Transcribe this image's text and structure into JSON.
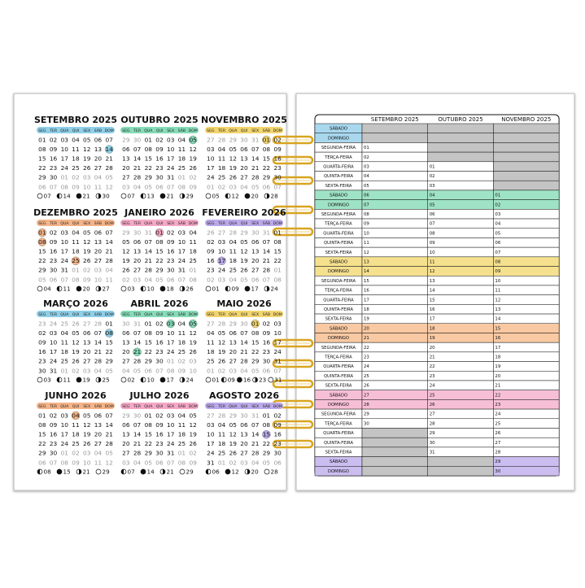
{
  "weekdays": [
    "SEG",
    "TER",
    "QUA",
    "QUI",
    "SEX",
    "SÁB",
    "DOM"
  ],
  "months": [
    {
      "title": "SETEMBRO 2025",
      "color": "#8fcfe8",
      "marked": [
        "14"
      ],
      "weeks": [
        [
          "01",
          "02",
          "03",
          "04",
          "05",
          "06",
          "07"
        ],
        [
          "08",
          "09",
          "10",
          "11",
          "12",
          "13",
          "14"
        ],
        [
          "15",
          "16",
          "17",
          "18",
          "19",
          "20",
          "21"
        ],
        [
          "22",
          "23",
          "24",
          "25",
          "26",
          "27",
          "28"
        ],
        [
          "29",
          "30",
          "01",
          "02",
          "03",
          "04",
          "05"
        ],
        [
          "06",
          "07",
          "08",
          "09",
          "10",
          "11",
          "12"
        ]
      ],
      "moons": [
        {
          "phase": "full",
          "day": "07"
        },
        {
          "phase": "last",
          "day": "14"
        },
        {
          "phase": "new",
          "day": "21"
        },
        {
          "phase": "first",
          "day": "30"
        }
      ]
    },
    {
      "title": "OUTUBRO 2025",
      "color": "#86dcb8",
      "marked": [
        "05"
      ],
      "weeks": [
        [
          "29",
          "30",
          "01",
          "02",
          "03",
          "04",
          "05"
        ],
        [
          "06",
          "07",
          "08",
          "09",
          "10",
          "11",
          "12"
        ],
        [
          "13",
          "14",
          "15",
          "16",
          "17",
          "18",
          "19"
        ],
        [
          "20",
          "21",
          "22",
          "23",
          "24",
          "25",
          "26"
        ],
        [
          "27",
          "28",
          "29",
          "30",
          "31",
          "01",
          "02"
        ],
        [
          "03",
          "04",
          "05",
          "06",
          "07",
          "08",
          "09"
        ]
      ],
      "moons": [
        {
          "phase": "full",
          "day": "07"
        },
        {
          "phase": "last",
          "day": "13"
        },
        {
          "phase": "new",
          "day": "21"
        },
        {
          "phase": "first",
          "day": "29"
        }
      ]
    },
    {
      "title": "NOVEMBRO 2025",
      "color": "#f3d56e",
      "marked": [
        "01"
      ],
      "weeks": [
        [
          "27",
          "28",
          "29",
          "30",
          "31",
          "01",
          "02"
        ],
        [
          "03",
          "04",
          "05",
          "06",
          "07",
          "08",
          "09"
        ],
        [
          "10",
          "11",
          "12",
          "13",
          "14",
          "15",
          "16"
        ],
        [
          "17",
          "18",
          "19",
          "20",
          "21",
          "22",
          "23"
        ],
        [
          "24",
          "25",
          "26",
          "27",
          "28",
          "29",
          "30"
        ],
        [
          "01",
          "02",
          "03",
          "04",
          "05",
          "06",
          "07"
        ]
      ],
      "moons": [
        {
          "phase": "full",
          "day": "05"
        },
        {
          "phase": "last",
          "day": "12"
        },
        {
          "phase": "new",
          "day": "20"
        },
        {
          "phase": "first",
          "day": "28"
        }
      ]
    },
    {
      "title": "DEZEMBRO 2025",
      "color": "#f5b488",
      "marked": [
        "01",
        "08",
        "25"
      ],
      "weeks": [
        [
          "01",
          "02",
          "03",
          "04",
          "05",
          "06",
          "07"
        ],
        [
          "08",
          "09",
          "10",
          "11",
          "12",
          "13",
          "14"
        ],
        [
          "15",
          "16",
          "17",
          "18",
          "19",
          "20",
          "21"
        ],
        [
          "22",
          "23",
          "24",
          "25",
          "26",
          "27",
          "28"
        ],
        [
          "29",
          "30",
          "31",
          "01",
          "02",
          "03",
          "04"
        ],
        [
          "05",
          "06",
          "07",
          "08",
          "09",
          "10",
          "11"
        ]
      ],
      "moons": [
        {
          "phase": "full",
          "day": "04"
        },
        {
          "phase": "last",
          "day": "11"
        },
        {
          "phase": "new",
          "day": "20"
        },
        {
          "phase": "first",
          "day": "27"
        }
      ]
    },
    {
      "title": "JANEIRO 2026",
      "color": "#f5a8c6",
      "marked": [
        "01"
      ],
      "weeks": [
        [
          "29",
          "30",
          "31",
          "01",
          "02",
          "03",
          "04"
        ],
        [
          "05",
          "06",
          "07",
          "08",
          "09",
          "10",
          "11"
        ],
        [
          "12",
          "13",
          "14",
          "15",
          "16",
          "17",
          "18"
        ],
        [
          "19",
          "20",
          "21",
          "22",
          "23",
          "24",
          "25"
        ],
        [
          "26",
          "27",
          "28",
          "29",
          "30",
          "31",
          "01"
        ],
        [
          "02",
          "03",
          "04",
          "05",
          "06",
          "07",
          "08"
        ]
      ],
      "moons": [
        {
          "phase": "full",
          "day": "03"
        },
        {
          "phase": "last",
          "day": "10"
        },
        {
          "phase": "new",
          "day": "18"
        },
        {
          "phase": "first",
          "day": "26"
        }
      ]
    },
    {
      "title": "FEVEREIRO 2026",
      "color": "#bba9ea",
      "marked": [
        "17"
      ],
      "weeks": [
        [
          "26",
          "27",
          "28",
          "29",
          "30",
          "31",
          "01"
        ],
        [
          "02",
          "03",
          "04",
          "05",
          "06",
          "07",
          "08"
        ],
        [
          "09",
          "10",
          "11",
          "12",
          "13",
          "14",
          "15"
        ],
        [
          "16",
          "17",
          "18",
          "19",
          "20",
          "21",
          "22"
        ],
        [
          "23",
          "24",
          "25",
          "26",
          "27",
          "28",
          "01"
        ],
        [
          "02",
          "03",
          "04",
          "05",
          "06",
          "07",
          "08"
        ]
      ],
      "moons": [
        {
          "phase": "full",
          "day": "01"
        },
        {
          "phase": "last",
          "day": "09"
        },
        {
          "phase": "new",
          "day": "17"
        },
        {
          "phase": "first",
          "day": "24"
        }
      ]
    },
    {
      "title": "MARÇO 2026",
      "color": "#8fcfe8",
      "marked": [
        "08"
      ],
      "weeks": [
        [
          "23",
          "24",
          "25",
          "26",
          "27",
          "28",
          "01"
        ],
        [
          "02",
          "03",
          "04",
          "05",
          "06",
          "07",
          "08"
        ],
        [
          "09",
          "10",
          "11",
          "12",
          "13",
          "14",
          "15"
        ],
        [
          "16",
          "17",
          "18",
          "19",
          "20",
          "21",
          "22"
        ],
        [
          "23",
          "24",
          "25",
          "26",
          "27",
          "28",
          "29"
        ],
        [
          "30",
          "31",
          "01",
          "02",
          "03",
          "04",
          "05"
        ]
      ],
      "moons": [
        {
          "phase": "full",
          "day": "03"
        },
        {
          "phase": "last",
          "day": "11"
        },
        {
          "phase": "new",
          "day": "19"
        },
        {
          "phase": "first",
          "day": "25"
        }
      ]
    },
    {
      "title": "ABRIL 2026",
      "color": "#86dcb8",
      "marked": [
        "03",
        "05",
        "21"
      ],
      "weeks": [
        [
          "30",
          "31",
          "01",
          "02",
          "03",
          "04",
          "05"
        ],
        [
          "06",
          "07",
          "08",
          "09",
          "10",
          "11",
          "12"
        ],
        [
          "13",
          "14",
          "15",
          "16",
          "17",
          "18",
          "19"
        ],
        [
          "20",
          "21",
          "22",
          "23",
          "24",
          "25",
          "26"
        ],
        [
          "27",
          "28",
          "29",
          "30",
          "01",
          "02",
          "03"
        ],
        [
          "04",
          "05",
          "06",
          "07",
          "08",
          "09",
          "10"
        ]
      ],
      "moons": [
        {
          "phase": "full",
          "day": "02"
        },
        {
          "phase": "last",
          "day": "10"
        },
        {
          "phase": "new",
          "day": "17"
        },
        {
          "phase": "first",
          "day": "24"
        }
      ]
    },
    {
      "title": "MAIO 2026",
      "color": "#f3d56e",
      "marked": [
        "01"
      ],
      "weeks": [
        [
          "27",
          "28",
          "29",
          "30",
          "01",
          "02",
          "03"
        ],
        [
          "04",
          "05",
          "06",
          "07",
          "08",
          "09",
          "10"
        ],
        [
          "11",
          "12",
          "13",
          "14",
          "15",
          "16",
          "17"
        ],
        [
          "18",
          "19",
          "20",
          "21",
          "22",
          "23",
          "24"
        ],
        [
          "25",
          "26",
          "27",
          "28",
          "29",
          "30",
          "31"
        ],
        [
          "01",
          "02",
          "03",
          "04",
          "05",
          "06",
          "07"
        ]
      ],
      "moons": [
        {
          "phase": "full",
          "day": "01"
        },
        {
          "phase": "last",
          "day": "09"
        },
        {
          "phase": "new",
          "day": "16"
        },
        {
          "phase": "first",
          "day": "23"
        },
        {
          "phase": "full",
          "day": "31"
        }
      ]
    },
    {
      "title": "JUNHO 2026",
      "color": "#f5b488",
      "marked": [
        "04"
      ],
      "weeks": [
        [
          "01",
          "02",
          "03",
          "04",
          "05",
          "06",
          "07"
        ],
        [
          "08",
          "09",
          "10",
          "11",
          "12",
          "13",
          "14"
        ],
        [
          "15",
          "16",
          "17",
          "18",
          "19",
          "20",
          "21"
        ],
        [
          "22",
          "23",
          "24",
          "25",
          "26",
          "27",
          "28"
        ],
        [
          "29",
          "30",
          "01",
          "02",
          "03",
          "04",
          "05"
        ],
        [
          "06",
          "07",
          "08",
          "09",
          "10",
          "11",
          "12"
        ]
      ],
      "moons": [
        {
          "phase": "last",
          "day": "08"
        },
        {
          "phase": "new",
          "day": "15"
        },
        {
          "phase": "first",
          "day": "21"
        },
        {
          "phase": "full",
          "day": "29"
        }
      ]
    },
    {
      "title": "JULHO 2026",
      "color": "#f5a8c6",
      "marked": [],
      "weeks": [
        [
          "29",
          "30",
          "01",
          "02",
          "03",
          "04",
          "05"
        ],
        [
          "06",
          "07",
          "08",
          "09",
          "10",
          "11",
          "12"
        ],
        [
          "13",
          "14",
          "15",
          "16",
          "17",
          "18",
          "19"
        ],
        [
          "20",
          "21",
          "22",
          "23",
          "24",
          "25",
          "26"
        ],
        [
          "27",
          "28",
          "29",
          "30",
          "31",
          "01",
          "02"
        ],
        [
          "03",
          "04",
          "05",
          "06",
          "07",
          "08",
          "09"
        ]
      ],
      "moons": [
        {
          "phase": "last",
          "day": "07"
        },
        {
          "phase": "new",
          "day": "14"
        },
        {
          "phase": "first",
          "day": "21"
        },
        {
          "phase": "full",
          "day": "29"
        }
      ]
    },
    {
      "title": "AGOSTO 2026",
      "color": "#bba9ea",
      "marked": [
        "15"
      ],
      "weeks": [
        [
          "27",
          "28",
          "29",
          "30",
          "31",
          "01",
          "02"
        ],
        [
          "03",
          "04",
          "05",
          "06",
          "07",
          "08",
          "09"
        ],
        [
          "10",
          "11",
          "12",
          "13",
          "14",
          "15",
          "16"
        ],
        [
          "17",
          "18",
          "19",
          "20",
          "21",
          "22",
          "23"
        ],
        [
          "24",
          "25",
          "26",
          "27",
          "28",
          "29",
          "30"
        ],
        [
          "31",
          "01",
          "02",
          "03",
          "04",
          "05",
          "06"
        ]
      ],
      "moons": [
        {
          "phase": "last",
          "day": "06"
        },
        {
          "phase": "new",
          "day": "12"
        },
        {
          "phase": "first",
          "day": "20"
        },
        {
          "phase": "full",
          "day": "28"
        }
      ]
    }
  ],
  "table": {
    "columns": [
      "SETEMBRO 2025",
      "OUTUBRO 2025",
      "NOVEMBRO 2025"
    ],
    "row_colors": [
      "#a9d8ee",
      "#9fe3c6",
      "#f5e08e",
      "#f8c9a3",
      "#f7bfd6",
      "#cbbdf0"
    ],
    "rows": [
      [
        "SÁBADO",
        null,
        null,
        null
      ],
      [
        "DOMINGO",
        null,
        null,
        null
      ],
      [
        "SEGUNDA-FEIRA",
        "01",
        null,
        null
      ],
      [
        "TERÇA-FEIRA",
        "02",
        null,
        null
      ],
      [
        "QUARTA-FEIRA",
        "03",
        "01",
        null
      ],
      [
        "QUINTA-FEIRA",
        "04",
        "02",
        null
      ],
      [
        "SEXTA-FEIRA",
        "05",
        "03",
        null
      ],
      [
        "SÁBADO",
        "06",
        "04",
        "01"
      ],
      [
        "DOMINGO",
        "07",
        "05",
        "02"
      ],
      [
        "SEGUNDA-FEIRA",
        "08",
        "06",
        "03"
      ],
      [
        "TERÇA-FEIRA",
        "09",
        "07",
        "04"
      ],
      [
        "QUARTA-FEIRA",
        "10",
        "08",
        "05"
      ],
      [
        "QUINTA-FEIRA",
        "11",
        "09",
        "06"
      ],
      [
        "SEXTA-FEIRA",
        "12",
        "10",
        "07"
      ],
      [
        "SÁBADO",
        "13",
        "11",
        "08"
      ],
      [
        "DOMINGO",
        "14",
        "12",
        "09"
      ],
      [
        "SEGUNDA-FEIRA",
        "15",
        "13",
        "10"
      ],
      [
        "TERÇA-FEIRA",
        "16",
        "14",
        "11"
      ],
      [
        "QUARTA-FEIRA",
        "17",
        "15",
        "12"
      ],
      [
        "QUINTA-FEIRA",
        "18",
        "16",
        "13"
      ],
      [
        "SEXTA-FEIRA",
        "19",
        "17",
        "14"
      ],
      [
        "SÁBADO",
        "20",
        "18",
        "15"
      ],
      [
        "DOMINGO",
        "21",
        "19",
        "16"
      ],
      [
        "SEGUNDA-FEIRA",
        "22",
        "20",
        "17"
      ],
      [
        "TERÇA-FEIRA",
        "23",
        "21",
        "18"
      ],
      [
        "QUARTA-FEIRA",
        "24",
        "22",
        "19"
      ],
      [
        "QUINTA-FEIRA",
        "25",
        "23",
        "20"
      ],
      [
        "SEXTA-FEIRA",
        "26",
        "24",
        "21"
      ],
      [
        "SÁBADO",
        "27",
        "25",
        "22"
      ],
      [
        "DOMINGO",
        "28",
        "26",
        "23"
      ],
      [
        "SEGUNDA-FEIRA",
        "29",
        "27",
        "24"
      ],
      [
        "TERÇA-FEIRA",
        "30",
        "28",
        "25"
      ],
      [
        "QUARTA-FEIRA",
        null,
        "29",
        "26"
      ],
      [
        "QUINTA-FEIRA",
        null,
        "30",
        "27"
      ],
      [
        "SEXTA-FEIRA",
        null,
        "31",
        "28"
      ],
      [
        "SÁBADO",
        null,
        null,
        "29"
      ],
      [
        "DOMINGO",
        null,
        null,
        "30"
      ]
    ]
  }
}
